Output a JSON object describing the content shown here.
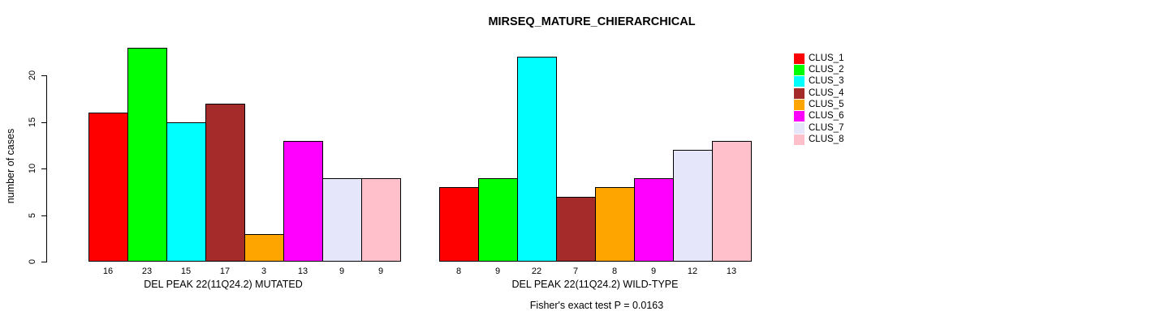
{
  "title": "MIRSEQ_MATURE_CHIERARCHICAL",
  "y_axis": {
    "label": "number of cases",
    "ticks": [
      0,
      5,
      10,
      15,
      20
    ]
  },
  "footer": "Fisher's exact test P = 0.0163",
  "legend": {
    "position": "right",
    "items": [
      {
        "label": "CLUS_1",
        "color": "#FF0000"
      },
      {
        "label": "CLUS_2",
        "color": "#00FF00"
      },
      {
        "label": "CLUS_3",
        "color": "#00FFFF"
      },
      {
        "label": "CLUS_4",
        "color": "#A52A2A"
      },
      {
        "label": "CLUS_5",
        "color": "#FFA500"
      },
      {
        "label": "CLUS_6",
        "color": "#FF00FF"
      },
      {
        "label": "CLUS_7",
        "color": "#E6E6FA"
      },
      {
        "label": "CLUS_8",
        "color": "#FFC0CB"
      }
    ]
  },
  "chart_data": [
    {
      "type": "bar",
      "panel": "MUTATED",
      "xlabel": "DEL PEAK 22(11Q24.2) MUTATED",
      "ylabel": "number of cases",
      "categories": [
        "CLUS_1",
        "CLUS_2",
        "CLUS_3",
        "CLUS_4",
        "CLUS_5",
        "CLUS_6",
        "CLUS_7",
        "CLUS_8"
      ],
      "values": [
        16,
        23,
        15,
        17,
        3,
        13,
        9,
        9
      ],
      "colors": [
        "#FF0000",
        "#00FF00",
        "#00FFFF",
        "#A52A2A",
        "#FFA500",
        "#FF00FF",
        "#E6E6FA",
        "#FFC0CB"
      ],
      "ylim": [
        0,
        23
      ],
      "yticks": [
        0,
        5,
        10,
        15,
        20
      ],
      "grid": false,
      "legend_position": "right"
    },
    {
      "type": "bar",
      "panel": "WILD-TYPE",
      "xlabel": "DEL PEAK 22(11Q24.2) WILD-TYPE",
      "ylabel": "number of cases",
      "categories": [
        "CLUS_1",
        "CLUS_2",
        "CLUS_3",
        "CLUS_4",
        "CLUS_5",
        "CLUS_6",
        "CLUS_7",
        "CLUS_8"
      ],
      "values": [
        8,
        9,
        22,
        7,
        8,
        9,
        12,
        13
      ],
      "colors": [
        "#FF0000",
        "#00FF00",
        "#00FFFF",
        "#A52A2A",
        "#FFA500",
        "#FF00FF",
        "#E6E6FA",
        "#FFC0CB"
      ],
      "ylim": [
        0,
        22
      ],
      "yticks": [
        0,
        5,
        10,
        15,
        20
      ],
      "grid": false,
      "legend_position": "right"
    }
  ]
}
